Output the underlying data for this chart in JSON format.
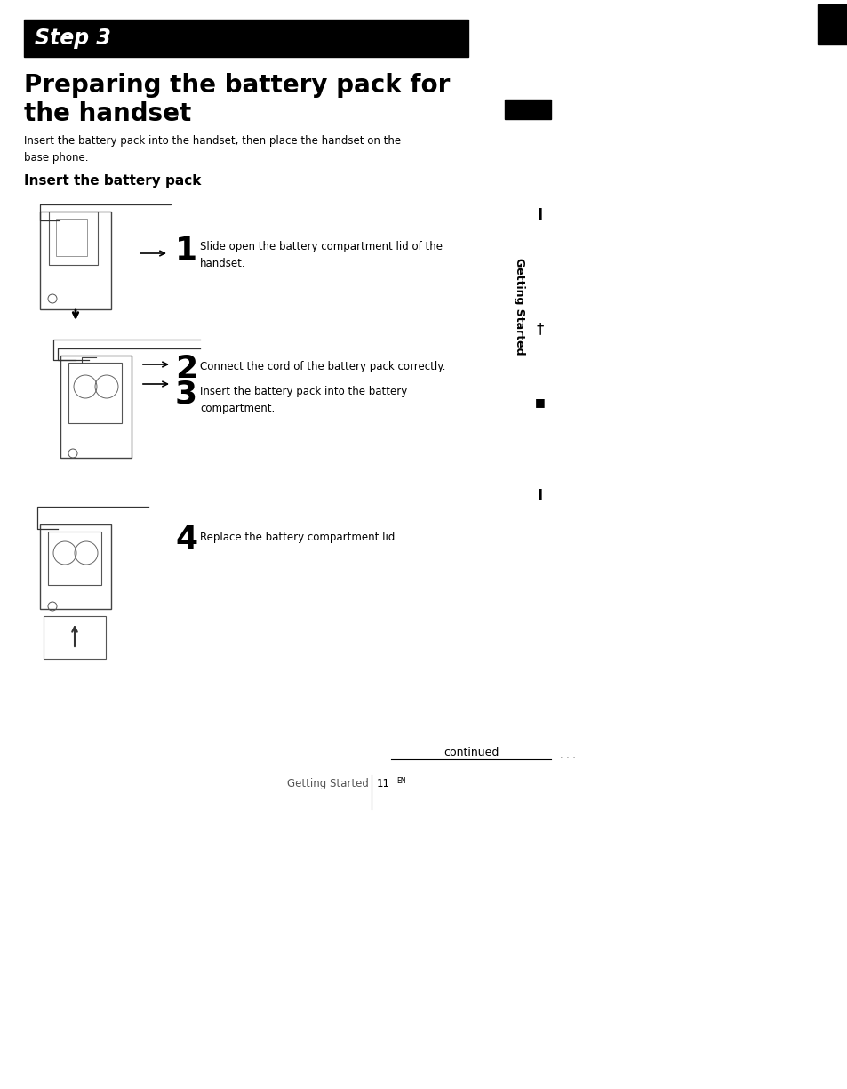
{
  "bg_color": "#ffffff",
  "step_bar_color": "#000000",
  "step_text": "Step 3",
  "step_text_color": "#ffffff",
  "main_title_line1": "Preparing the battery pack for",
  "main_title_line2": "the handset",
  "subtitle_text": "Insert the battery pack into the handset, then place the handset on the\nbase phone.",
  "section_header": "Insert the battery pack",
  "step1_num": "1",
  "step1_text": "Slide open the battery compartment lid of the\nhandset.",
  "step2_num": "2",
  "step2_text": "Connect the cord of the battery pack correctly.",
  "step3_num": "3",
  "step3_text": "Insert the battery pack into the battery\ncompartment.",
  "step4_num": "4",
  "step4_text": "Replace the battery compartment lid.",
  "continued_text": "continued",
  "footer_left": "Getting Started",
  "page_num": "11",
  "page_num_sup": "EN",
  "sidebar_text": "Getting Started",
  "right_edge_bar_color": "#000000",
  "sidebar_small_rect_color": "#000000"
}
